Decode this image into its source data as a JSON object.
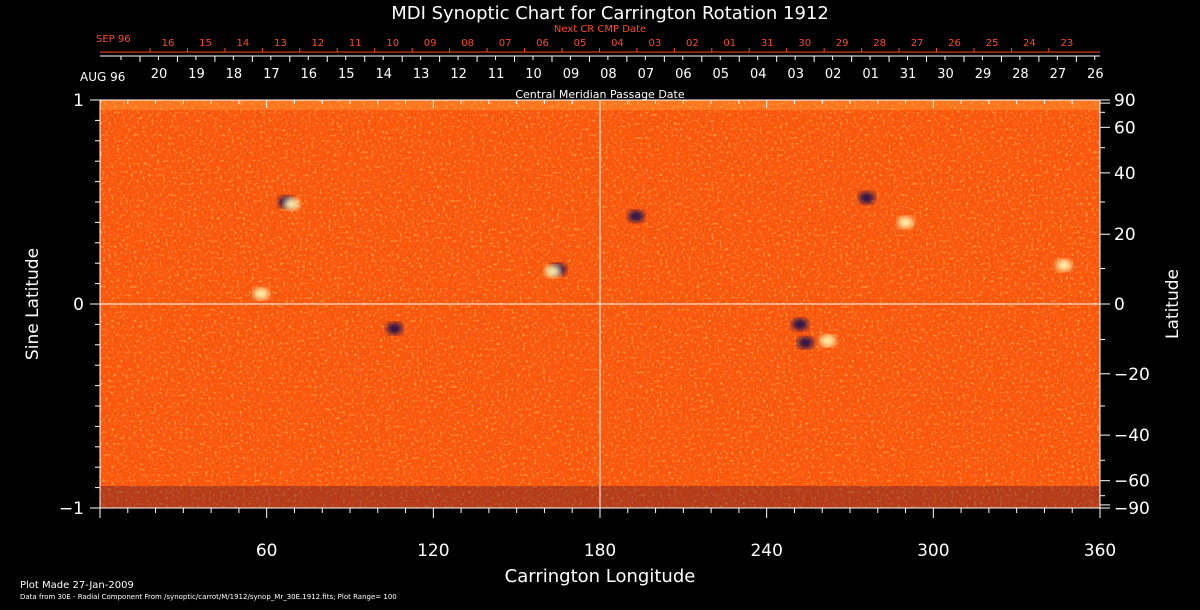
{
  "chart_data": {
    "type": "heatmap",
    "title": "MDI Synoptic Chart for Carrington Rotation 1912",
    "xlabel": "Carrington Longitude",
    "ylabel_left": "Sine Latitude",
    "ylabel_right": "Latitude",
    "xlim": [
      0,
      360
    ],
    "ylim": [
      -1,
      1
    ],
    "x_ticks": [
      60,
      120,
      180,
      240,
      300,
      360
    ],
    "y_left_ticks": [
      1,
      0,
      -1
    ],
    "y_left_tick_labels": [
      "1",
      "0",
      "−1"
    ],
    "y_right_ticks": [
      90,
      60,
      40,
      20,
      0,
      -20,
      -40,
      -60,
      -90
    ],
    "y_right_tick_labels": [
      "90",
      "60",
      "40",
      "20",
      "0",
      "−20",
      "−40",
      "−60",
      "−90"
    ],
    "top_axis_label": "Central Meridian Passage Date",
    "top_axis_month": "AUG 96",
    "top_axis_dates": [
      "20",
      "19",
      "18",
      "17",
      "16",
      "15",
      "14",
      "13",
      "12",
      "11",
      "10",
      "09",
      "08",
      "07",
      "06",
      "05",
      "04",
      "03",
      "02",
      "01",
      "31",
      "30",
      "29",
      "28",
      "27",
      "26"
    ],
    "next_axis_label": "Next CR CMP Date",
    "next_axis_month": "SEP 96",
    "next_axis_dates": [
      "16",
      "15",
      "14",
      "13",
      "12",
      "11",
      "10",
      "09",
      "08",
      "07",
      "06",
      "05",
      "04",
      "03",
      "02",
      "01",
      "31",
      "30",
      "29",
      "28",
      "27",
      "26",
      "25",
      "24",
      "23"
    ],
    "field": "Radial Component",
    "plot_range": 100,
    "active_regions": [
      {
        "lon": 254,
        "sinlat": -0.19,
        "polarity": "negative"
      },
      {
        "lon": 262,
        "sinlat": -0.18,
        "polarity": "positive"
      },
      {
        "lon": 252,
        "sinlat": -0.1,
        "polarity": "negative"
      },
      {
        "lon": 276,
        "sinlat": 0.52,
        "polarity": "negative"
      },
      {
        "lon": 290,
        "sinlat": 0.4,
        "polarity": "positive"
      },
      {
        "lon": 67,
        "sinlat": 0.5,
        "polarity": "negative"
      },
      {
        "lon": 69,
        "sinlat": 0.49,
        "polarity": "positive"
      },
      {
        "lon": 165,
        "sinlat": 0.17,
        "polarity": "negative"
      },
      {
        "lon": 163,
        "sinlat": 0.16,
        "polarity": "positive"
      },
      {
        "lon": 58,
        "sinlat": 0.05,
        "polarity": "positive"
      },
      {
        "lon": 106,
        "sinlat": -0.12,
        "polarity": "negative"
      },
      {
        "lon": 193,
        "sinlat": 0.43,
        "polarity": "negative"
      },
      {
        "lon": 347,
        "sinlat": 0.19,
        "polarity": "positive"
      }
    ],
    "colors": {
      "background_field": "#ff5a0a",
      "positive": "#fff4b0",
      "negative": "#1a1050",
      "grid": "#ffffff",
      "next_axis": "#ff4a20"
    },
    "grid": true
  },
  "footer": {
    "plot_made": "Plot Made 27-Jan-2009",
    "data_from": "Data from 30E - Radial Component From /synoptic/carrot/M/1912/synop_Mr_30E.1912.fits; Plot Range= 100"
  }
}
